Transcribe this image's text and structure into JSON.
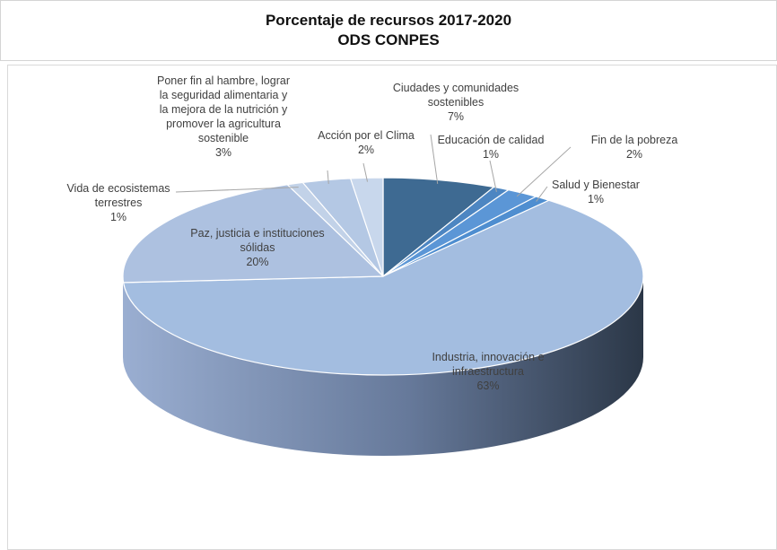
{
  "chart_data": {
    "type": "pie",
    "title": "Porcentaje de recursos 2017-2020",
    "subtitle": "ODS CONPES",
    "slices": [
      {
        "name": "Ciudades y comunidades sostenibles",
        "value": 7,
        "label": "7%",
        "color": "#3e6a92"
      },
      {
        "name": "Educación de calidad",
        "value": 1,
        "label": "1%",
        "color": "#4d86c2"
      },
      {
        "name": "Fin de la pobreza",
        "value": 2,
        "label": "2%",
        "color": "#5b96d6"
      },
      {
        "name": "Salud y Bienestar",
        "value": 1,
        "label": "1%",
        "color": "#4f8ed0"
      },
      {
        "name": "Industria, innovación e infraestructura",
        "value": 63,
        "label": "63%",
        "color": "#a3bde0"
      },
      {
        "name": "Paz, justicia e instituciones sólidas",
        "value": 20,
        "label": "20%",
        "color": "#adc1e0"
      },
      {
        "name": "Vida de ecosistemas terrestres",
        "value": 1,
        "label": "1%",
        "color": "#c2d2e8"
      },
      {
        "name": "Poner fin al hambre, lograr la seguridad alimentaria y la mejora de la nutrición y promover la agricultura sostenible",
        "value": 3,
        "label": "3%",
        "color": "#b4c8e4"
      },
      {
        "name": "Acción por el Clima",
        "value": 2,
        "label": "2%",
        "color": "#c8d7ec"
      }
    ],
    "label_lines": [
      [
        "Ciudades y comunidades",
        "sostenibles",
        "7%"
      ],
      [
        "Educación de calidad",
        "1%"
      ],
      [
        "Fin de la pobreza",
        "2%"
      ],
      [
        "Salud y Bienestar",
        "1%"
      ],
      [
        "Industria, innovación e",
        "infraestructura",
        "63%"
      ],
      [
        "Paz, justicia e instituciones",
        "sólidas",
        "20%"
      ],
      [
        "Vida de ecosistemas",
        "terrestres",
        "1%"
      ],
      [
        "Poner fin al hambre, lograr",
        "la seguridad alimentaria y",
        "la mejora de la nutrición y",
        "promover la agricultura",
        "sostenible",
        "3%"
      ],
      [
        "Acción por el Clima",
        "2%"
      ]
    ]
  }
}
